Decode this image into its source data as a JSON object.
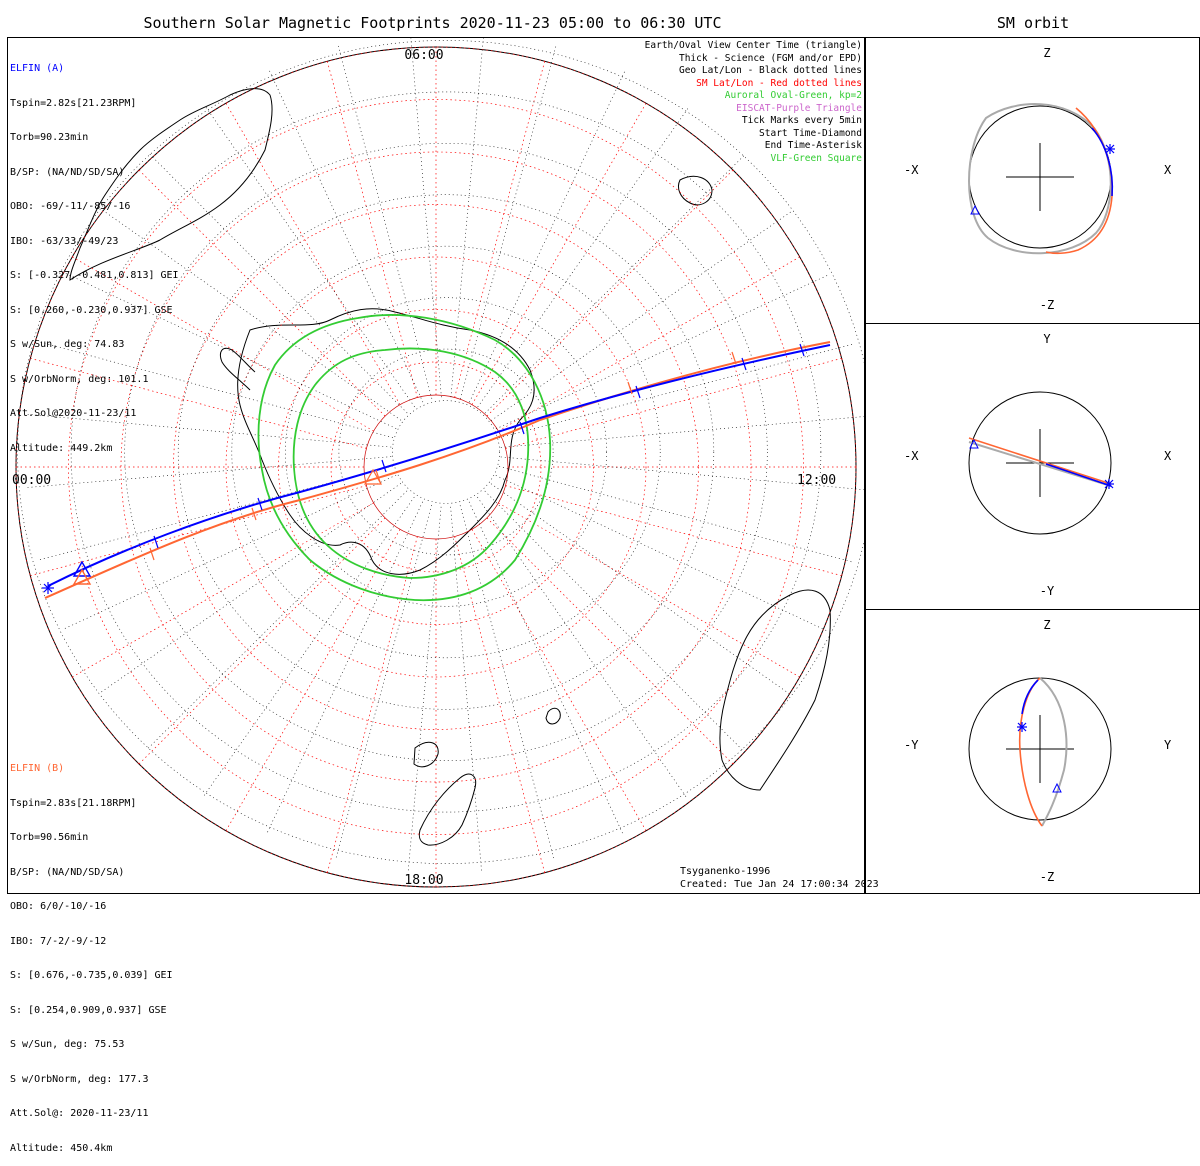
{
  "title": "Southern Solar Magnetic Footprints 2020-11-23 05:00 to 06:30 UTC",
  "orbit_title": "SM orbit",
  "mlt_labels": {
    "top": "06:00",
    "left": "00:00",
    "right": "12:00",
    "bottom": "18:00"
  },
  "legend": [
    {
      "text": "Earth/Oval View Center Time (triangle)",
      "color": "#000000"
    },
    {
      "text": "Thick - Science (FGM and/or EPD)",
      "color": "#000000"
    },
    {
      "text": "Geo Lat/Lon - Black dotted lines",
      "color": "#000000"
    },
    {
      "text": "SM Lat/Lon - Red dotted lines",
      "color": "#ff0000"
    },
    {
      "text": "Auroral Oval-Green, kp=2",
      "color": "#33cc33"
    },
    {
      "text": "EISCAT-Purple Triangle",
      "color": "#cc66cc"
    },
    {
      "text": "Tick Marks every 5min",
      "color": "#000000"
    },
    {
      "text": "Start Time-Diamond",
      "color": "#000000"
    },
    {
      "text": "End Time-Asterisk",
      "color": "#000000"
    },
    {
      "text": "VLF-Green Square",
      "color": "#33cc33"
    }
  ],
  "elfin_a": {
    "name": "ELFIN (A)",
    "color": "#0000ff",
    "lines": [
      "Tspin=2.82s[21.23RPM]",
      "Torb=90.23min",
      "B/SP: (NA/ND/SD/SA)",
      "OBO: -69/-11/-85/-16",
      "IBO: -63/33/-49/23",
      "S: [-0.327,-0.481,0.813] GEI",
      "S: [0.260,-0.230,0.937] GSE",
      "S w/Sun, deg: 74.83",
      "S w/OrbNorm, deg: 101.1",
      "Att.Sol@2020-11-23/11",
      "Altitude: 449.2km"
    ]
  },
  "elfin_b": {
    "name": "ELFIN (B)",
    "color": "#ff6633",
    "lines": [
      "Tspin=2.83s[21.18RPM]",
      "Torb=90.56min",
      "B/SP: (NA/ND/SD/SA)",
      "OBO: 6/0/-10/-16",
      "IBO: 7/-2/-9/-12",
      "S: [0.676,-0.735,0.039] GEI",
      "S: [0.254,0.909,0.937] GSE",
      "S w/Sun, deg: 75.53",
      "S w/OrbNorm, deg: 177.3",
      "Att.Sol@: 2020-11-23/11",
      "Altitude: 450.4km"
    ]
  },
  "footer": {
    "model": "Tsyganenko-1996",
    "created": "Created: Tue Jan 24 17:00:34 2023"
  },
  "orbit_panels": [
    {
      "name": "xz",
      "top": "Z",
      "bottom": "-Z",
      "left": "-X",
      "right": "X"
    },
    {
      "name": "xy",
      "top": "Y",
      "bottom": "-Y",
      "left": "-X",
      "right": "X"
    },
    {
      "name": "yz",
      "top": "Z",
      "bottom": "-Z",
      "left": "-Y",
      "right": "Y"
    }
  ],
  "colors": {
    "elfin_a": "#0000ff",
    "elfin_b": "#ff6633",
    "auroral_oval": "#33cc33",
    "sm_grid": "#ff0000",
    "geo_grid": "#000000",
    "earth_orbit_ref": "#aaaaaa"
  }
}
